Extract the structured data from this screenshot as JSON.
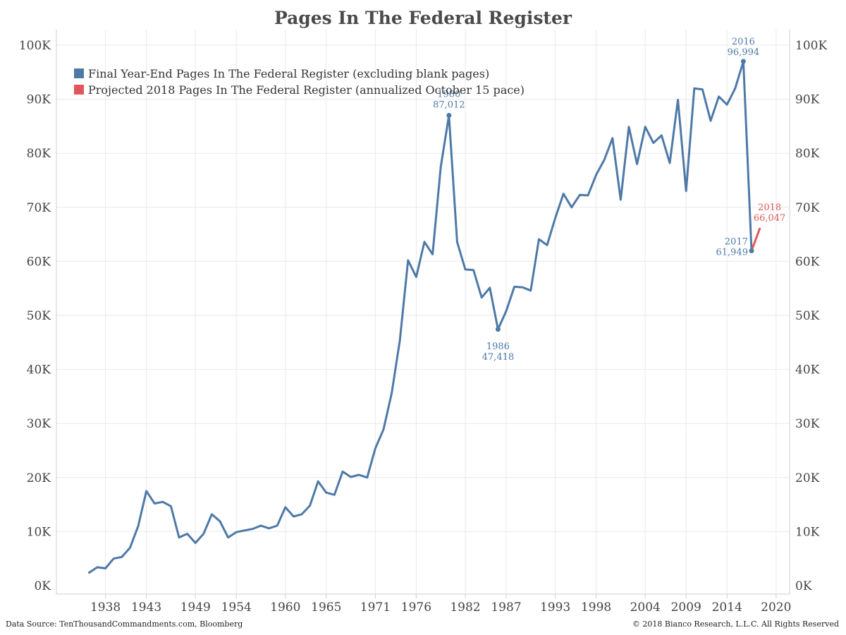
{
  "title": "Pages In The Federal Register",
  "footer": {
    "source": "Data Source: TenThousandCommandments.com, Bloomberg",
    "copyright": "© 2018 Bianco Research, L.L.C. All Rights Reserved"
  },
  "colors": {
    "blue": "#4e79a7",
    "red": "#e15759"
  },
  "legend": [
    {
      "label": "Final Year-End Pages In The Federal Register (excluding blank pages)",
      "color": "#4e79a7"
    },
    {
      "label": "Projected 2018 Pages In The Federal Register (annualized October 15 pace)",
      "color": "#e15759"
    }
  ],
  "chart_data": {
    "type": "line",
    "title": "Pages In The Federal Register",
    "xlabel": "",
    "ylabel": "",
    "xlim": [
      1932,
      2022
    ],
    "ylim": [
      0,
      100000
    ],
    "x_ticks": [
      "1938",
      "1943",
      "1949",
      "1954",
      "1960",
      "1965",
      "1971",
      "1976",
      "1982",
      "1987",
      "1993",
      "1998",
      "2004",
      "2009",
      "2014",
      "2020"
    ],
    "y_ticks": [
      "0K",
      "10K",
      "20K",
      "30K",
      "40K",
      "50K",
      "60K",
      "70K",
      "80K",
      "90K",
      "100K"
    ],
    "grid": true,
    "legend_position": "top-left",
    "series": [
      {
        "name": "Final Year-End Pages In The Federal Register (excluding blank pages)",
        "color": "#4e79a7",
        "x": [
          1936,
          1937,
          1938,
          1939,
          1940,
          1941,
          1942,
          1943,
          1944,
          1945,
          1946,
          1947,
          1948,
          1949,
          1950,
          1951,
          1952,
          1953,
          1954,
          1955,
          1956,
          1957,
          1958,
          1959,
          1960,
          1961,
          1962,
          1963,
          1964,
          1965,
          1966,
          1967,
          1968,
          1969,
          1970,
          1971,
          1972,
          1973,
          1974,
          1975,
          1976,
          1977,
          1978,
          1979,
          1980,
          1981,
          1982,
          1983,
          1984,
          1985,
          1986,
          1987,
          1988,
          1989,
          1990,
          1991,
          1992,
          1993,
          1994,
          1995,
          1996,
          1997,
          1998,
          1999,
          2000,
          2001,
          2002,
          2003,
          2004,
          2005,
          2006,
          2007,
          2008,
          2009,
          2010,
          2011,
          2012,
          2013,
          2014,
          2015,
          2016,
          2017
        ],
        "y": [
          2400,
          3400,
          3200,
          5000,
          5300,
          7000,
          11000,
          17500,
          15200,
          15500,
          14700,
          8900,
          9600,
          7900,
          9600,
          13200,
          11900,
          8900,
          9900,
          10200,
          10500,
          11100,
          10600,
          11100,
          14500,
          12800,
          13200,
          14800,
          19300,
          17200,
          16800,
          21100,
          20100,
          20500,
          20000,
          25400,
          28900,
          35600,
          45400,
          60200,
          57100,
          63600,
          61300,
          77500,
          87012,
          63600,
          58500,
          58400,
          53300,
          55100,
          47418,
          50800,
          55300,
          55200,
          54600,
          64100,
          63000,
          68000,
          72500,
          70000,
          72300,
          72200,
          76000,
          78800,
          82800,
          71400,
          84900,
          78000,
          84900,
          81900,
          83300,
          78200,
          89900,
          73000,
          92000,
          91800,
          86000,
          90500,
          89000,
          92000,
          96994,
          61949
        ],
        "annotations": [
          {
            "x": 1980,
            "label_year": "1980",
            "label_value": "87,012"
          },
          {
            "x": 1986,
            "label_year": "1986",
            "label_value": "47,418"
          },
          {
            "x": 2016,
            "label_year": "2016",
            "label_value": "96,994"
          },
          {
            "x": 2017,
            "label_year": "2017",
            "label_value": "61,949"
          }
        ]
      },
      {
        "name": "Projected 2018 Pages In The Federal Register (annualized October 15 pace)",
        "color": "#e15759",
        "x": [
          2017,
          2018
        ],
        "y": [
          61949,
          66047
        ],
        "annotations": [
          {
            "x": 2018,
            "label_year": "2018",
            "label_value": "66,047"
          }
        ]
      }
    ]
  }
}
